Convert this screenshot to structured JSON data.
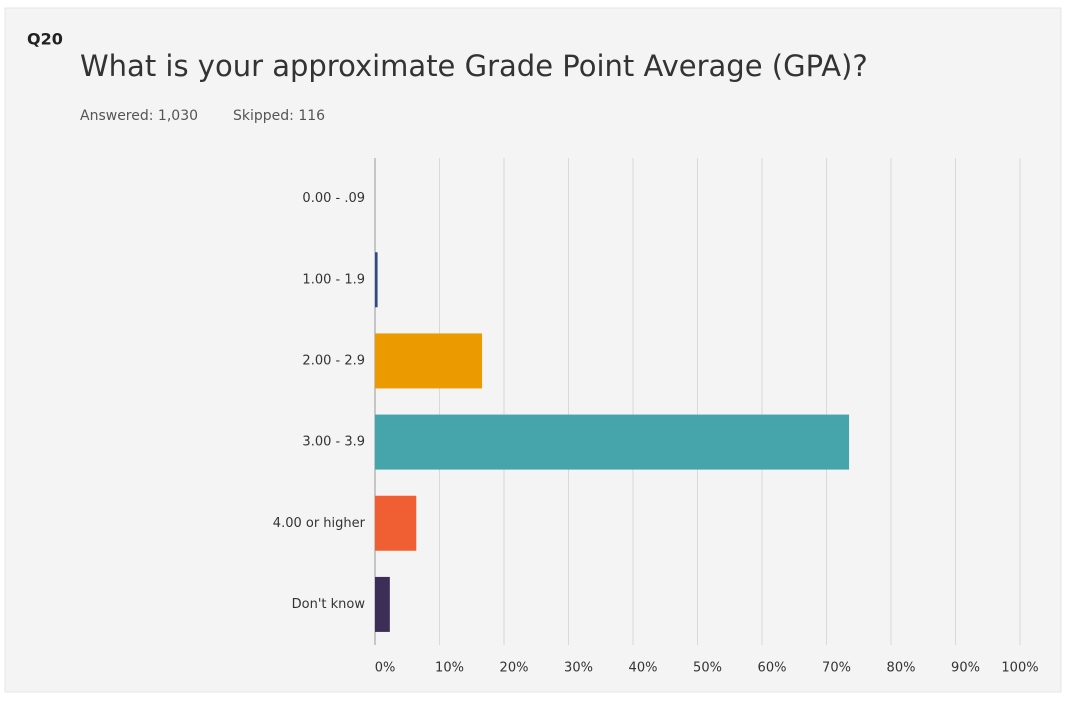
{
  "question": "Q20",
  "answered": "Answered: 1,030",
  "skipped": "Skipped: 116",
  "chart_data": {
    "type": "bar",
    "orientation": "horizontal",
    "title": "What is your approximate Grade Point Average (GPA)?",
    "categories": [
      "0.00 - .09",
      "1.00  -  1.9",
      "2.00 - 2.9",
      "3.00 - 3.9",
      "4.00 or higher",
      "Don't know"
    ],
    "values": [
      0,
      0.4,
      16.6,
      73.5,
      6.4,
      2.3
    ],
    "colors": [
      "#00bf6f",
      "#2f4a8a",
      "#eb9b00",
      "#45a5aa",
      "#f05f33",
      "#3d2e58"
    ],
    "xlim": [
      0,
      100
    ],
    "xticks": [
      {
        "value": 0,
        "label": "0%"
      },
      {
        "value": 10,
        "label": "10%"
      },
      {
        "value": 20,
        "label": "20%"
      },
      {
        "value": 30,
        "label": "30%"
      },
      {
        "value": 40,
        "label": "40%"
      },
      {
        "value": 50,
        "label": "50%"
      },
      {
        "value": 60,
        "label": "60%"
      },
      {
        "value": 70,
        "label": "70%"
      },
      {
        "value": 80,
        "label": "80%"
      },
      {
        "value": 90,
        "label": "90%"
      },
      {
        "value": 100,
        "label": "100%"
      }
    ],
    "grid": true
  }
}
